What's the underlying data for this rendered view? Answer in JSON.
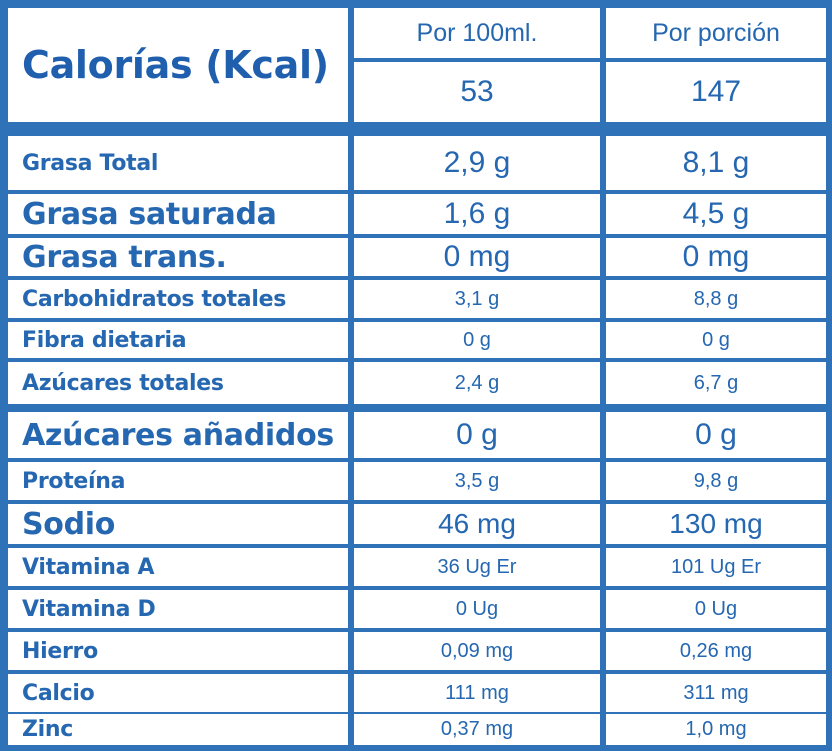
{
  "header": {
    "title": "Calorías (Kcal)",
    "col_100ml": "Por 100ml.",
    "col_portion": "Por porción",
    "calories_100ml": 53,
    "calories_portion": 147
  },
  "table": {
    "rows": [
      [
        "Grasa Total",
        "2,9 g",
        "8,1 g"
      ],
      [
        "Grasa saturada",
        "1,6 g",
        "4,5 g"
      ],
      [
        "Grasa trans.",
        "0 mg",
        "0 mg"
      ],
      [
        "Carbohidratos totales",
        "3,1 g",
        "8,8 g"
      ],
      [
        "Fibra dietaria",
        "0 g",
        "0 g"
      ],
      [
        "Azúcares totales",
        "2,4 g",
        "6,7 g"
      ],
      [
        "Azúcares añadidos",
        "0 g",
        "0 g"
      ],
      [
        "Proteína",
        "3,5 g",
        "9,8 g"
      ],
      [
        "Sodio",
        "46 mg",
        "130 mg"
      ],
      [
        "Vitamina A",
        "36 Ug Er",
        "101 Ug Er"
      ],
      [
        "Vitamina D",
        "0 Ug",
        "0 Ug"
      ],
      [
        "Hierro",
        "0,09 mg",
        "0,26 mg"
      ],
      [
        "Calcio",
        "111 mg",
        "311 mg"
      ],
      [
        "Zinc",
        "0,37 mg",
        "1,0 mg"
      ]
    ]
  }
}
